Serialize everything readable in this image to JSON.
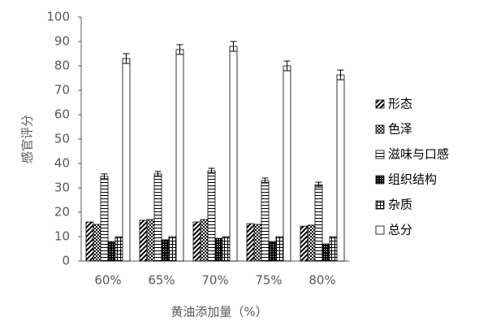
{
  "chart_data": {
    "type": "bar",
    "x_label": "黄油添加量（%）",
    "y_label": "感官评分",
    "categories": [
      "60%",
      "65%",
      "70%",
      "75%",
      "80%"
    ],
    "series": [
      {
        "name": "形态",
        "color": "#000000",
        "pattern": "diagonal",
        "values": [
          16,
          16.7,
          16,
          15.3,
          14.3
        ]
      },
      {
        "name": "色泽",
        "color": "#000000",
        "pattern": "cross",
        "values": [
          15,
          17,
          17,
          15,
          14.7
        ]
      },
      {
        "name": "滋味与口感",
        "color": "#000000",
        "pattern": "horizontal",
        "values": [
          34.7,
          35.7,
          37,
          33,
          31.3
        ],
        "errors": [
          1,
          1,
          1,
          1,
          1
        ]
      },
      {
        "name": "组织结构",
        "color": "#000000",
        "pattern": "checker",
        "values": [
          8,
          8.7,
          9.3,
          8,
          7
        ]
      },
      {
        "name": "杂质",
        "color": "#000000",
        "pattern": "grid",
        "values": [
          10,
          10,
          10,
          10,
          10
        ]
      },
      {
        "name": "总分",
        "color": "#000000",
        "pattern": "none",
        "values": [
          83,
          86.7,
          88,
          80,
          76.3
        ],
        "errors": [
          2,
          2,
          2,
          2,
          2
        ]
      }
    ],
    "ylim": [
      0,
      100
    ],
    "yticks": [
      0,
      10,
      20,
      30,
      40,
      50,
      60,
      70,
      80,
      90,
      100
    ],
    "grid": false,
    "legend": "right"
  }
}
